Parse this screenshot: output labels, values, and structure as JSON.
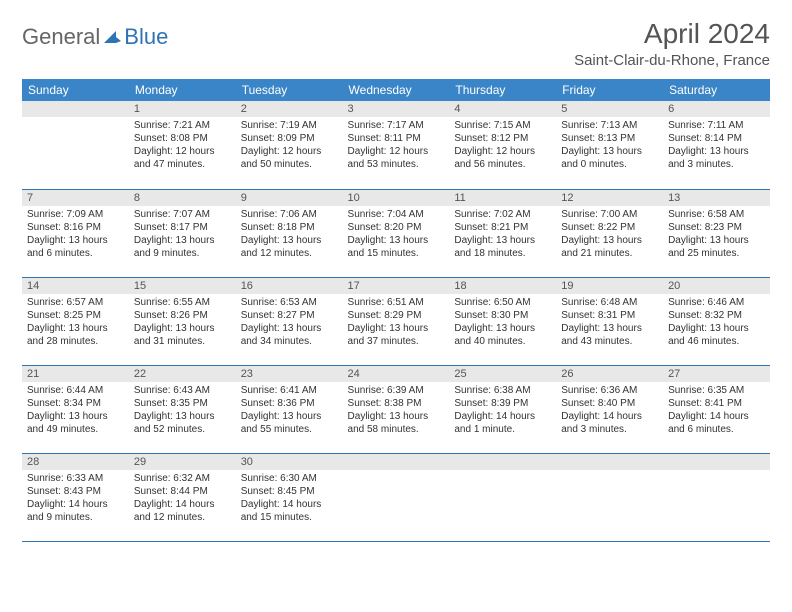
{
  "logo": {
    "part1": "General",
    "part2": "Blue"
  },
  "title": "April 2024",
  "location": "Saint-Clair-du-Rhone, France",
  "weekdays": [
    "Sunday",
    "Monday",
    "Tuesday",
    "Wednesday",
    "Thursday",
    "Friday",
    "Saturday"
  ],
  "colors": {
    "header_bg": "#3a85c8",
    "header_text": "#ffffff",
    "daynum_bg": "#e8e8e8",
    "border": "#2e74b5",
    "logo_gray": "#666666",
    "logo_blue": "#2e74b5",
    "text": "#333333"
  },
  "weeks": [
    [
      {
        "n": "",
        "sr": "",
        "ss": "",
        "dl": ""
      },
      {
        "n": "1",
        "sr": "Sunrise: 7:21 AM",
        "ss": "Sunset: 8:08 PM",
        "dl": "Daylight: 12 hours and 47 minutes."
      },
      {
        "n": "2",
        "sr": "Sunrise: 7:19 AM",
        "ss": "Sunset: 8:09 PM",
        "dl": "Daylight: 12 hours and 50 minutes."
      },
      {
        "n": "3",
        "sr": "Sunrise: 7:17 AM",
        "ss": "Sunset: 8:11 PM",
        "dl": "Daylight: 12 hours and 53 minutes."
      },
      {
        "n": "4",
        "sr": "Sunrise: 7:15 AM",
        "ss": "Sunset: 8:12 PM",
        "dl": "Daylight: 12 hours and 56 minutes."
      },
      {
        "n": "5",
        "sr": "Sunrise: 7:13 AM",
        "ss": "Sunset: 8:13 PM",
        "dl": "Daylight: 13 hours and 0 minutes."
      },
      {
        "n": "6",
        "sr": "Sunrise: 7:11 AM",
        "ss": "Sunset: 8:14 PM",
        "dl": "Daylight: 13 hours and 3 minutes."
      }
    ],
    [
      {
        "n": "7",
        "sr": "Sunrise: 7:09 AM",
        "ss": "Sunset: 8:16 PM",
        "dl": "Daylight: 13 hours and 6 minutes."
      },
      {
        "n": "8",
        "sr": "Sunrise: 7:07 AM",
        "ss": "Sunset: 8:17 PM",
        "dl": "Daylight: 13 hours and 9 minutes."
      },
      {
        "n": "9",
        "sr": "Sunrise: 7:06 AM",
        "ss": "Sunset: 8:18 PM",
        "dl": "Daylight: 13 hours and 12 minutes."
      },
      {
        "n": "10",
        "sr": "Sunrise: 7:04 AM",
        "ss": "Sunset: 8:20 PM",
        "dl": "Daylight: 13 hours and 15 minutes."
      },
      {
        "n": "11",
        "sr": "Sunrise: 7:02 AM",
        "ss": "Sunset: 8:21 PM",
        "dl": "Daylight: 13 hours and 18 minutes."
      },
      {
        "n": "12",
        "sr": "Sunrise: 7:00 AM",
        "ss": "Sunset: 8:22 PM",
        "dl": "Daylight: 13 hours and 21 minutes."
      },
      {
        "n": "13",
        "sr": "Sunrise: 6:58 AM",
        "ss": "Sunset: 8:23 PM",
        "dl": "Daylight: 13 hours and 25 minutes."
      }
    ],
    [
      {
        "n": "14",
        "sr": "Sunrise: 6:57 AM",
        "ss": "Sunset: 8:25 PM",
        "dl": "Daylight: 13 hours and 28 minutes."
      },
      {
        "n": "15",
        "sr": "Sunrise: 6:55 AM",
        "ss": "Sunset: 8:26 PM",
        "dl": "Daylight: 13 hours and 31 minutes."
      },
      {
        "n": "16",
        "sr": "Sunrise: 6:53 AM",
        "ss": "Sunset: 8:27 PM",
        "dl": "Daylight: 13 hours and 34 minutes."
      },
      {
        "n": "17",
        "sr": "Sunrise: 6:51 AM",
        "ss": "Sunset: 8:29 PM",
        "dl": "Daylight: 13 hours and 37 minutes."
      },
      {
        "n": "18",
        "sr": "Sunrise: 6:50 AM",
        "ss": "Sunset: 8:30 PM",
        "dl": "Daylight: 13 hours and 40 minutes."
      },
      {
        "n": "19",
        "sr": "Sunrise: 6:48 AM",
        "ss": "Sunset: 8:31 PM",
        "dl": "Daylight: 13 hours and 43 minutes."
      },
      {
        "n": "20",
        "sr": "Sunrise: 6:46 AM",
        "ss": "Sunset: 8:32 PM",
        "dl": "Daylight: 13 hours and 46 minutes."
      }
    ],
    [
      {
        "n": "21",
        "sr": "Sunrise: 6:44 AM",
        "ss": "Sunset: 8:34 PM",
        "dl": "Daylight: 13 hours and 49 minutes."
      },
      {
        "n": "22",
        "sr": "Sunrise: 6:43 AM",
        "ss": "Sunset: 8:35 PM",
        "dl": "Daylight: 13 hours and 52 minutes."
      },
      {
        "n": "23",
        "sr": "Sunrise: 6:41 AM",
        "ss": "Sunset: 8:36 PM",
        "dl": "Daylight: 13 hours and 55 minutes."
      },
      {
        "n": "24",
        "sr": "Sunrise: 6:39 AM",
        "ss": "Sunset: 8:38 PM",
        "dl": "Daylight: 13 hours and 58 minutes."
      },
      {
        "n": "25",
        "sr": "Sunrise: 6:38 AM",
        "ss": "Sunset: 8:39 PM",
        "dl": "Daylight: 14 hours and 1 minute."
      },
      {
        "n": "26",
        "sr": "Sunrise: 6:36 AM",
        "ss": "Sunset: 8:40 PM",
        "dl": "Daylight: 14 hours and 3 minutes."
      },
      {
        "n": "27",
        "sr": "Sunrise: 6:35 AM",
        "ss": "Sunset: 8:41 PM",
        "dl": "Daylight: 14 hours and 6 minutes."
      }
    ],
    [
      {
        "n": "28",
        "sr": "Sunrise: 6:33 AM",
        "ss": "Sunset: 8:43 PM",
        "dl": "Daylight: 14 hours and 9 minutes."
      },
      {
        "n": "29",
        "sr": "Sunrise: 6:32 AM",
        "ss": "Sunset: 8:44 PM",
        "dl": "Daylight: 14 hours and 12 minutes."
      },
      {
        "n": "30",
        "sr": "Sunrise: 6:30 AM",
        "ss": "Sunset: 8:45 PM",
        "dl": "Daylight: 14 hours and 15 minutes."
      },
      {
        "n": "",
        "sr": "",
        "ss": "",
        "dl": ""
      },
      {
        "n": "",
        "sr": "",
        "ss": "",
        "dl": ""
      },
      {
        "n": "",
        "sr": "",
        "ss": "",
        "dl": ""
      },
      {
        "n": "",
        "sr": "",
        "ss": "",
        "dl": ""
      }
    ]
  ]
}
